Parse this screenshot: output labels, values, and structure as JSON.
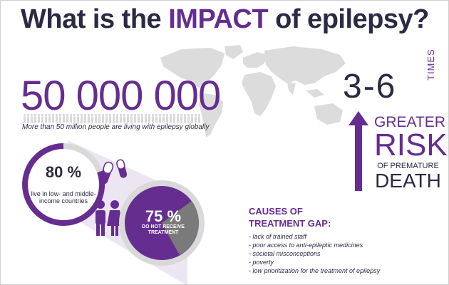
{
  "title": {
    "prefix": "What is the ",
    "highlight": "IMPACT",
    "suffix": " of epilepsy?"
  },
  "global_stat": {
    "number": "50 000 000",
    "caption": "More than 50 million people are living with epilepsy globally"
  },
  "risk": {
    "number": "3-6",
    "times": "TIMES",
    "greater": "GREATER",
    "risk": "RISK",
    "of_premature": "OF PREMATURE",
    "death": "DEATH"
  },
  "low_income": {
    "percent": "80 %",
    "caption": "live in low- and middle-income countries"
  },
  "no_treatment": {
    "percent": "75 %",
    "caption": "DO NOT RECEIVE TREATMENT"
  },
  "causes": {
    "title": "CAUSES OF TREATMENT GAP:",
    "items": [
      "- lack of trained staff",
      "- poor access to anti-epileptic medicines",
      "- societal misconceptions",
      "- poverty",
      "- low prioritization for the treatment of epilepsy"
    ]
  },
  "colors": {
    "purple": "#662d91",
    "navy": "#2a2a45",
    "grey": "#7a7a7a",
    "light_grey": "#d9d9d9",
    "lavender": "#ece5f2"
  },
  "icons": [
    "world-map-icon",
    "person-icon",
    "pill-icon",
    "up-arrow-icon",
    "man-icon",
    "woman-icon"
  ]
}
